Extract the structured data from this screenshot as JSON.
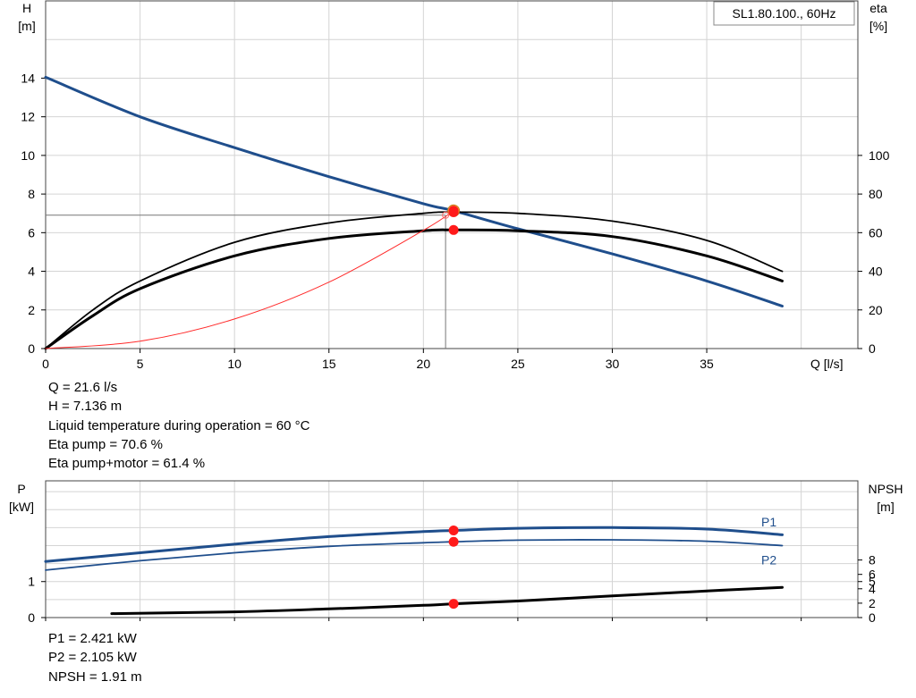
{
  "chart_data": [
    {
      "type": "line",
      "title": "SL1.80.100., 60Hz",
      "xlabel": "Q [l/s]",
      "ylabel_left": [
        "H",
        "[m]"
      ],
      "ylabel_right": [
        "eta",
        "[%]"
      ],
      "xlim": [
        0,
        43
      ],
      "ylim_left": [
        0,
        18
      ],
      "ylim_right": [
        0,
        180
      ],
      "x_ticks": [
        0,
        5,
        10,
        15,
        20,
        25,
        30,
        35
      ],
      "y_ticks_left": [
        0,
        2,
        4,
        6,
        8,
        10,
        12,
        14
      ],
      "y_ticks_right": [
        0,
        20,
        40,
        60,
        80,
        100
      ],
      "grid": true,
      "series": [
        {
          "name": "H",
          "axis": "left",
          "color": "#1f4e8c",
          "x": [
            0,
            5,
            10,
            15,
            20,
            21.6,
            25,
            30,
            35,
            39
          ],
          "y": [
            14.05,
            12.0,
            10.4,
            8.9,
            7.5,
            7.136,
            6.2,
            4.9,
            3.5,
            2.2
          ]
        },
        {
          "name": "Eta pump",
          "axis": "right",
          "color": "#000000",
          "x": [
            0,
            2.5,
            5,
            10,
            15,
            20,
            21.6,
            25,
            30,
            35,
            39
          ],
          "y": [
            0,
            20,
            35,
            55,
            65,
            70,
            70.6,
            70,
            66,
            56,
            40
          ]
        },
        {
          "name": "Eta pump+motor",
          "axis": "right",
          "color": "#000000",
          "x": [
            0,
            2.5,
            5,
            10,
            15,
            20,
            21.6,
            25,
            30,
            35,
            39
          ],
          "y": [
            0,
            17,
            31,
            48,
            57,
            61,
            61.4,
            61,
            58,
            48,
            35
          ]
        },
        {
          "name": "System curve",
          "axis": "left",
          "color": "#ff2a2a",
          "x": [
            0,
            5,
            10,
            15,
            20,
            21.6
          ],
          "y": [
            0,
            0.38,
            1.53,
            3.44,
            6.12,
            7.136
          ]
        }
      ],
      "operating_point": {
        "x": 21.6,
        "y": 7.136,
        "eta_pump": 70.6,
        "eta_total": 61.4
      }
    },
    {
      "type": "line",
      "ylabel_left": [
        "P",
        "[kW]"
      ],
      "ylabel_right": [
        "NPSH",
        "[m]"
      ],
      "xlim": [
        0,
        43
      ],
      "ylim_left": [
        0,
        3.8
      ],
      "ylim_right": [
        0,
        19
      ],
      "y_ticks_left": [
        0,
        1
      ],
      "y_ticks_right": [
        0,
        2,
        4,
        5,
        6,
        8
      ],
      "grid": true,
      "series": [
        {
          "name": "P1",
          "axis": "left",
          "color": "#1f4e8c",
          "x": [
            0,
            5,
            10,
            15,
            20,
            21.6,
            25,
            30,
            35,
            39
          ],
          "y": [
            1.56,
            1.8,
            2.04,
            2.25,
            2.39,
            2.421,
            2.48,
            2.5,
            2.46,
            2.3
          ]
        },
        {
          "name": "P2",
          "axis": "left",
          "color": "#1f4e8c",
          "x": [
            0,
            5,
            10,
            15,
            20,
            21.6,
            25,
            30,
            35,
            39
          ],
          "y": [
            1.32,
            1.58,
            1.8,
            1.98,
            2.08,
            2.105,
            2.15,
            2.16,
            2.12,
            2.0
          ]
        },
        {
          "name": "NPSH",
          "axis": "right",
          "color": "#000000",
          "x": [
            3.5,
            10,
            15,
            20,
            21.6,
            25,
            30,
            35,
            39
          ],
          "y": [
            0.55,
            0.8,
            1.2,
            1.7,
            1.91,
            2.3,
            3.0,
            3.7,
            4.2
          ]
        }
      ]
    }
  ],
  "info_top": [
    "Q = 21.6 l/s",
    "H = 7.136 m",
    "Liquid temperature during operation = 60 °C",
    "Eta pump = 70.6 %",
    "Eta pump+motor = 61.4 %"
  ],
  "info_bottom": [
    "P1 = 2.421 kW",
    "P2 = 2.105 kW",
    "NPSH = 1.91 m"
  ]
}
